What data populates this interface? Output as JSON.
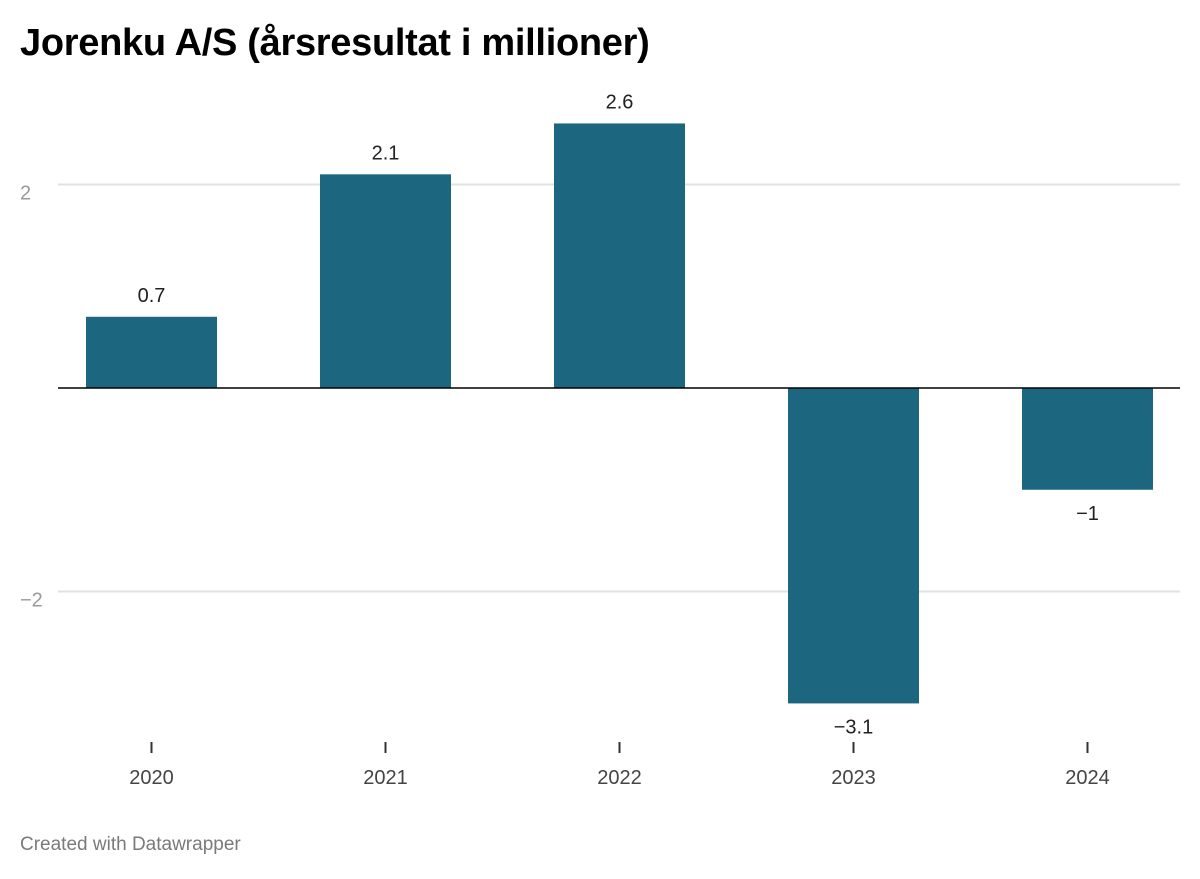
{
  "title": "Jorenku A/S (årsresultat i millioner)",
  "footer": "Created with Datawrapper",
  "colors": {
    "bar": "#1c677f",
    "grid": "#e2e2e2",
    "baseline": "#000000"
  },
  "chart_data": {
    "type": "bar",
    "title": "Jorenku A/S (årsresultat i millioner)",
    "categories": [
      "2020",
      "2021",
      "2022",
      "2023",
      "2024"
    ],
    "values": [
      0.7,
      2.1,
      2.6,
      -3.1,
      -1
    ],
    "value_labels": [
      "0.7",
      "2.1",
      "2.6",
      "−3.1",
      "−1"
    ],
    "y_ticks": [
      2,
      0,
      -2
    ],
    "y_tick_labels": [
      "2",
      "",
      "−2"
    ],
    "ylim": [
      -3.1,
      2.6
    ],
    "grid": true,
    "legend": "none"
  }
}
